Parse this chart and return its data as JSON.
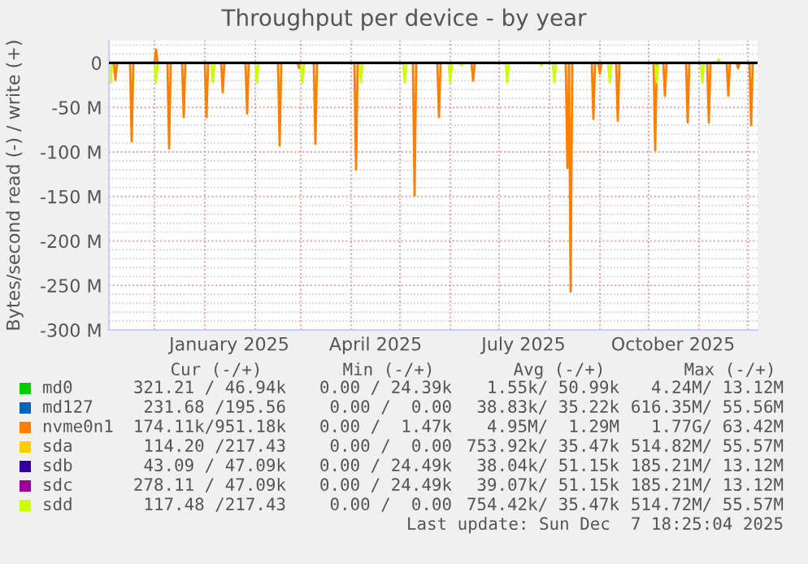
{
  "chart_data": {
    "type": "line",
    "title": "Throughput per device - by year",
    "ylabel": "Bytes/second read (-) / write (+)",
    "xlim": [
      "2024-11-03",
      "2025-12-07"
    ],
    "ylim": [
      -300,
      25
    ],
    "xticks": [
      {
        "value": "2024-12-01",
        "label": null
      },
      {
        "value": "2025-01-01",
        "label": null
      },
      {
        "value": "2025-01-16",
        "label": "January 2025"
      },
      {
        "value": "2025-02-01",
        "label": null
      },
      {
        "value": "2025-03-01",
        "label": null
      },
      {
        "value": "2025-04-01",
        "label": null
      },
      {
        "value": "2025-04-16",
        "label": "April 2025"
      },
      {
        "value": "2025-05-01",
        "label": null
      },
      {
        "value": "2025-06-01",
        "label": null
      },
      {
        "value": "2025-07-01",
        "label": null
      },
      {
        "value": "2025-07-16",
        "label": "July 2025"
      },
      {
        "value": "2025-08-01",
        "label": null
      },
      {
        "value": "2025-09-01",
        "label": null
      },
      {
        "value": "2025-10-01",
        "label": null
      },
      {
        "value": "2025-10-16",
        "label": "October 2025"
      },
      {
        "value": "2025-11-01",
        "label": null
      },
      {
        "value": "2025-12-01",
        "label": null
      }
    ],
    "yticks": [
      {
        "value": -300,
        "label": "-300 M"
      },
      {
        "value": -250,
        "label": "-250 M"
      },
      {
        "value": -200,
        "label": "-200 M"
      },
      {
        "value": -150,
        "label": "-150 M"
      },
      {
        "value": -100,
        "label": "-100 M"
      },
      {
        "value": -50,
        "label": "-50 M"
      },
      0
    ],
    "grid": true,
    "legend": "bottom",
    "ref_lines": [
      {
        "axis": "y",
        "value": 0,
        "color": "#000000"
      }
    ],
    "series": [
      {
        "name": "md0",
        "color": "#00cc00"
      },
      {
        "name": "md127",
        "color": "#0066b3"
      },
      {
        "name": "nvme0n1",
        "color": "#ff8000",
        "x": [
          "2024-11-03",
          "2024-11-06",
          "2024-11-07",
          "2024-11-08",
          "2024-11-16",
          "2024-11-17",
          "2024-11-18",
          "2024-12-01",
          "2024-12-02",
          "2024-12-03",
          "2024-12-09",
          "2024-12-10",
          "2024-12-11",
          "2024-12-18",
          "2024-12-19",
          "2024-12-20",
          "2025-01-01",
          "2025-01-02",
          "2025-01-03",
          "2025-01-11",
          "2025-01-12",
          "2025-01-13",
          "2025-01-26",
          "2025-01-27",
          "2025-01-28",
          "2025-02-15",
          "2025-02-16",
          "2025-02-17",
          "2025-02-27",
          "2025-02-28",
          "2025-03-01",
          "2025-03-09",
          "2025-03-10",
          "2025-03-11",
          "2025-04-03",
          "2025-04-04",
          "2025-04-05",
          "2025-05-09",
          "2025-05-10",
          "2025-05-11",
          "2025-05-24",
          "2025-05-25",
          "2025-05-26",
          "2025-06-14",
          "2025-06-15",
          "2025-06-16",
          "2025-08-11",
          "2025-08-12",
          "2025-08-13",
          "2025-08-14",
          "2025-08-15",
          "2025-08-27",
          "2025-08-28",
          "2025-08-29",
          "2025-08-31",
          "2025-09-01",
          "2025-09-02",
          "2025-09-11",
          "2025-09-12",
          "2025-09-13",
          "2025-10-04",
          "2025-10-05",
          "2025-10-06",
          "2025-10-10",
          "2025-10-11",
          "2025-10-12",
          "2025-10-24",
          "2025-10-25",
          "2025-10-26",
          "2025-11-06",
          "2025-11-07",
          "2025-11-08",
          "2025-11-18",
          "2025-11-19",
          "2025-11-20",
          "2025-11-24",
          "2025-11-25",
          "2025-11-26",
          "2025-12-02",
          "2025-12-03",
          "2025-12-04",
          "2025-12-07"
        ],
        "values": [
          0,
          0,
          -19,
          0,
          0,
          -88,
          0,
          0,
          15,
          0,
          0,
          -96,
          0,
          0,
          -61,
          0,
          0,
          -61,
          0,
          0,
          -33,
          0,
          0,
          -57,
          0,
          0,
          -93,
          0,
          0,
          -6,
          0,
          0,
          -91,
          0,
          0,
          -120,
          0,
          0,
          -149,
          0,
          0,
          -61,
          0,
          0,
          -20,
          0,
          0,
          -118,
          0,
          -257,
          0,
          0,
          -63,
          0,
          0,
          -12,
          0,
          0,
          -65,
          0,
          0,
          -98,
          0,
          0,
          -37,
          0,
          0,
          -67,
          0,
          0,
          -67,
          0,
          0,
          -37,
          0,
          0,
          -6,
          0,
          0,
          -70,
          0,
          0
        ]
      },
      {
        "name": "sda",
        "color": "#ffcc00"
      },
      {
        "name": "sdb",
        "color": "#330099"
      },
      {
        "name": "sdc",
        "color": "#990099"
      },
      {
        "name": "sdd",
        "color": "#ccff00",
        "x": [
          "2024-11-03",
          "2024-11-04",
          "2024-11-05",
          "2024-12-01",
          "2024-12-02",
          "2024-12-03",
          "2025-01-05",
          "2025-01-06",
          "2025-01-07",
          "2025-02-01",
          "2025-02-02",
          "2025-02-03",
          "2025-03-01",
          "2025-03-02",
          "2025-03-03",
          "2025-04-06",
          "2025-04-07",
          "2025-04-08",
          "2025-05-03",
          "2025-05-04",
          "2025-05-05",
          "2025-05-31",
          "2025-06-01",
          "2025-06-02",
          "2025-06-07",
          "2025-06-08",
          "2025-06-09",
          "2025-07-05",
          "2025-07-06",
          "2025-07-07",
          "2025-07-26",
          "2025-07-27",
          "2025-07-28",
          "2025-08-03",
          "2025-08-04",
          "2025-08-05",
          "2025-09-06",
          "2025-09-07",
          "2025-09-08",
          "2025-10-05",
          "2025-10-06",
          "2025-10-07",
          "2025-11-02",
          "2025-11-03",
          "2025-11-04",
          "2025-11-12",
          "2025-11-13",
          "2025-11-14",
          "2025-12-07"
        ],
        "values": [
          0,
          -22,
          0,
          0,
          -22,
          0,
          0,
          -22,
          0,
          0,
          -22,
          0,
          0,
          -22,
          0,
          0,
          -22,
          0,
          0,
          -22,
          0,
          0,
          -22,
          0,
          0,
          -3,
          0,
          0,
          -22,
          0,
          0,
          -3,
          0,
          0,
          -22,
          0,
          0,
          -22,
          0,
          0,
          -22,
          0,
          0,
          -22,
          0,
          0,
          4,
          0,
          0
        ]
      }
    ],
    "annotations": [
      "Cur (-/+)",
      "Min (-/+)",
      "Avg (-/+)",
      "Max (-/+)",
      "321.21 / 46.94k",
      "0.00 / 24.39k",
      "1.55k/ 50.99k",
      "4.24M/ 13.12M",
      "231.68 /195.56",
      "0.00 /  0.00",
      "38.83k/ 35.22k",
      "616.35M/ 55.56M",
      "174.11k/951.18k",
      "0.00 /  1.47k",
      "4.95M/  1.29M",
      "1.77G/ 63.42M",
      "114.20 /217.43",
      "0.00 /  0.00",
      "753.92k/ 35.47k",
      "514.82M/ 55.57M",
      "43.09 / 47.09k",
      "0.00 / 24.49k",
      "38.04k/ 51.15k",
      "185.21M/ 13.12M",
      "278.11 / 47.09k",
      "0.00 / 24.49k",
      "39.07k/ 51.15k",
      "185.21M/ 13.12M",
      "117.48 /217.43",
      "0.00 /  0.00",
      "754.42k/ 35.47k",
      "514.72M/ 55.57M",
      "Last update: Sun Dec  7 18:25:04 2025"
    ]
  }
}
